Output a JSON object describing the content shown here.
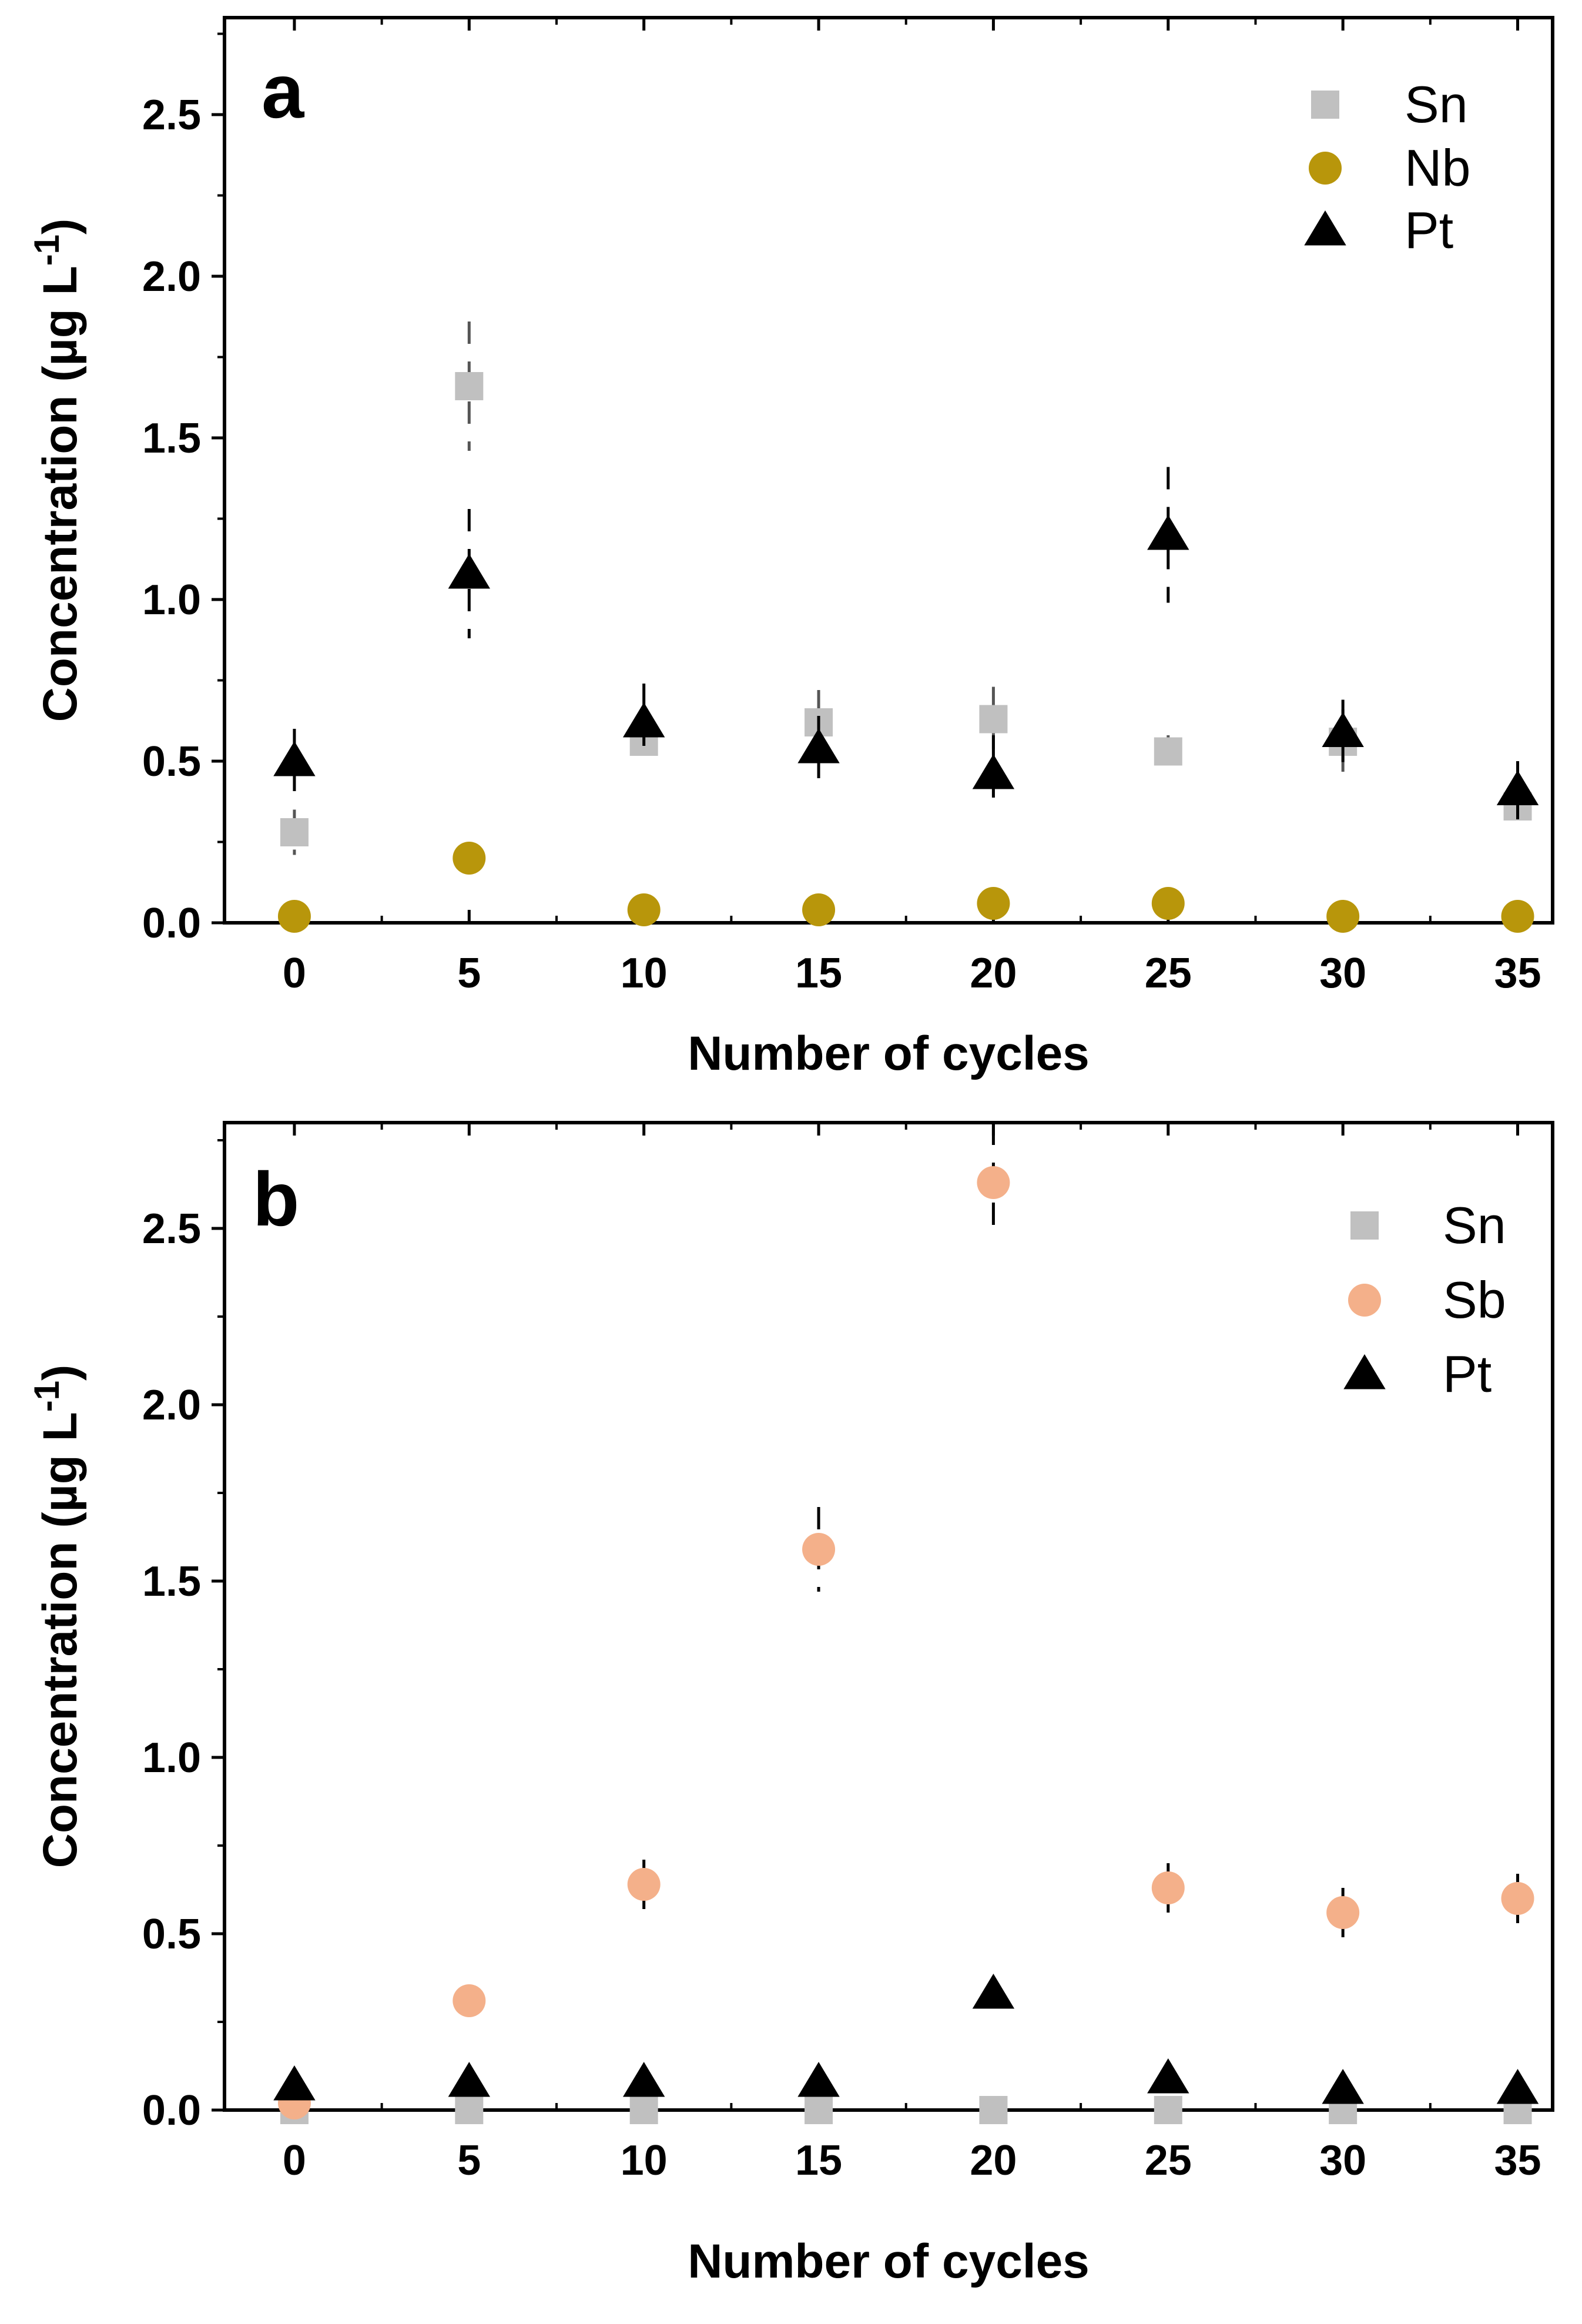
{
  "chart_data": [
    {
      "type": "scatter",
      "panel": "a",
      "xlabel": "Number of cycles",
      "ylabel": "Concentration (µg L",
      "ylabel_superscript": "-1",
      "ylabel_close": ")",
      "xlim": [
        -2,
        36
      ],
      "ylim": [
        0,
        2.8
      ],
      "xticks": [
        0,
        5,
        10,
        15,
        20,
        25,
        30,
        35
      ],
      "yticks": [
        0.0,
        0.5,
        1.0,
        1.5,
        2.0,
        2.5
      ],
      "ytick_labels": [
        "0.0",
        "0.5",
        "1.0",
        "1.5",
        "2.0",
        "2.5"
      ],
      "legend_position": "top-right",
      "series": [
        {
          "name": "Sn",
          "marker": "square",
          "color": "#c0c0c0",
          "x": [
            0,
            5,
            10,
            15,
            20,
            25,
            30,
            35
          ],
          "y": [
            0.28,
            1.66,
            0.56,
            0.62,
            0.63,
            0.53,
            0.56,
            0.36
          ],
          "err": [
            0.07,
            0.2,
            0.05,
            0.1,
            0.1,
            0.05,
            0.1,
            0.06
          ],
          "err_color": "#555555"
        },
        {
          "name": "Nb",
          "marker": "circle",
          "color": "#b8960b",
          "x": [
            0,
            5,
            10,
            15,
            20,
            25,
            30,
            35
          ],
          "y": [
            0.02,
            0.2,
            0.04,
            0.04,
            0.06,
            0.06,
            0.02,
            0.02
          ],
          "err": [
            0.02,
            0.03,
            0.02,
            0.02,
            0.03,
            0.03,
            0.02,
            0.02
          ],
          "err_color": "#000000"
        },
        {
          "name": "Pt",
          "marker": "triangle",
          "color": "#000000",
          "x": [
            0,
            5,
            10,
            15,
            20,
            25,
            30,
            35
          ],
          "y": [
            0.5,
            1.08,
            0.62,
            0.54,
            0.46,
            1.2,
            0.59,
            0.41
          ],
          "err": [
            0.1,
            0.2,
            0.12,
            0.1,
            0.12,
            0.21,
            0.1,
            0.09
          ],
          "err_color": "#000000"
        }
      ]
    },
    {
      "type": "scatter",
      "panel": "b",
      "xlabel": "Number of cycles",
      "ylabel": "Concentration (µg L",
      "ylabel_superscript": "-1",
      "ylabel_close": ")",
      "xlim": [
        -2,
        36
      ],
      "ylim": [
        0,
        2.8
      ],
      "xticks": [
        0,
        5,
        10,
        15,
        20,
        25,
        30,
        35
      ],
      "yticks": [
        0.0,
        0.5,
        1.0,
        1.5,
        2.0,
        2.5
      ],
      "ytick_labels": [
        "0.0",
        "0.5",
        "1.0",
        "1.5",
        "2.0",
        "2.5"
      ],
      "legend_position": "top-right",
      "series": [
        {
          "name": "Sn",
          "marker": "square",
          "color": "#c0c0c0",
          "x": [
            0,
            5,
            10,
            15,
            20,
            25,
            30,
            35
          ],
          "y": [
            0,
            0,
            0,
            0,
            0,
            0,
            0,
            0
          ],
          "err": [
            0.01,
            0.01,
            0.01,
            0.01,
            0.01,
            0.01,
            0.01,
            0.01
          ],
          "err_color": "#555555"
        },
        {
          "name": "Sb",
          "marker": "circle",
          "color": "#f4b08a",
          "x": [
            0,
            5,
            10,
            15,
            20,
            25,
            30,
            35
          ],
          "y": [
            0.02,
            0.31,
            0.64,
            1.59,
            2.63,
            0.63,
            0.56,
            0.6
          ],
          "err": [
            0.02,
            0.04,
            0.07,
            0.12,
            0.17,
            0.07,
            0.07,
            0.07
          ],
          "err_color": "#000000"
        },
        {
          "name": "Pt",
          "marker": "triangle",
          "color": "#000000",
          "x": [
            0,
            5,
            10,
            15,
            20,
            25,
            30,
            35
          ],
          "y": [
            0.07,
            0.08,
            0.08,
            0.08,
            0.33,
            0.09,
            0.06,
            0.06
          ],
          "err": [
            0.02,
            0.02,
            0.02,
            0.02,
            0.05,
            0.02,
            0.02,
            0.02
          ],
          "err_color": "#000000"
        }
      ]
    }
  ]
}
